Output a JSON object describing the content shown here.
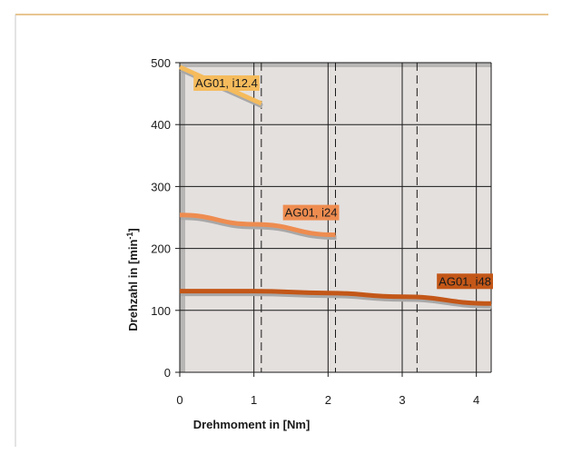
{
  "colors": {
    "plot_background": "#e4e0de",
    "plot_shadow": "#b8b6b4",
    "grid": "#1a1a1a",
    "line_shadow": "#a8a8a8",
    "series_i12_4": "#f5bb5c",
    "series_i24": "#ee8c50",
    "series_i48": "#c35718",
    "text_light_bg": "#1a1a1a",
    "text_dark_bg": "#ffffff"
  },
  "chart_data": {
    "type": "line",
    "title": "",
    "xlabel": "Drehmoment in [Nm]",
    "ylabel_main": "Drehzahl in [min",
    "ylabel_sup": "-1",
    "ylabel_end": "]",
    "xlim": [
      0,
      4.2
    ],
    "ylim": [
      0,
      500
    ],
    "xticks": [
      "0",
      "1",
      "2",
      "3",
      "4"
    ],
    "yticks": [
      "0",
      "100",
      "200",
      "300",
      "400",
      "500"
    ],
    "grid": true,
    "dashed_limits": [
      {
        "x": 1.1,
        "series": "AG01, i12.4"
      },
      {
        "x": 2.1,
        "series": "AG01, i24"
      },
      {
        "x": 3.2,
        "series": "AG01, i48"
      }
    ],
    "series": [
      {
        "name": "AG01, i12.4",
        "color_key": "series_i12_4",
        "label_dark": false,
        "x": [
          0,
          1.1
        ],
        "y": [
          493,
          434
        ]
      },
      {
        "name": "AG01, i24",
        "color_key": "series_i24",
        "label_dark": false,
        "x": [
          0,
          1.0,
          2.1
        ],
        "y": [
          254,
          239,
          222
        ]
      },
      {
        "name": "AG01, i48",
        "color_key": "series_i48",
        "label_dark": true,
        "x": [
          0,
          1.0,
          2.0,
          3.0,
          4.2
        ],
        "y": [
          131,
          131,
          128,
          122,
          111
        ]
      }
    ]
  }
}
